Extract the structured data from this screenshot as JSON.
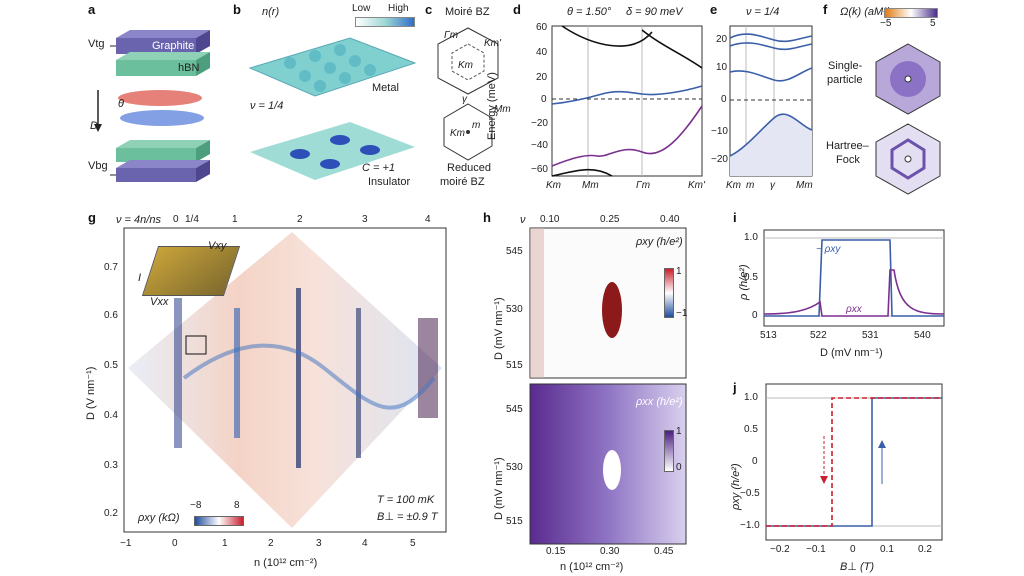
{
  "panels": {
    "a": {
      "letter": "a",
      "vtg": "Vtg",
      "graphite": "Graphite",
      "hbn": "hBN",
      "theta": "θ",
      "d": "D",
      "vbg": "Vbg"
    },
    "b": {
      "letter": "b",
      "nr": "n(r)",
      "low": "Low",
      "high": "High",
      "metal": "Metal",
      "nu": "ν = 1/4",
      "c1": "C = +1",
      "insulator": "Insulator"
    },
    "c": {
      "letter": "c",
      "moire_bz": "Moiré BZ",
      "gamma_m": "Γm",
      "km1": "Km'",
      "km2": "Km",
      "gamma": "γ",
      "mm": "Mm",
      "km3": "Km",
      "m": "m",
      "reduced1": "Reduced",
      "reduced2": "moiré BZ"
    },
    "d": {
      "letter": "d",
      "theta": "θ = 1.50°",
      "delta": "δ = 90 meV",
      "ylabel": "Energy (meV)",
      "yticks": [
        "60",
        "40",
        "20",
        "0",
        "−20",
        "−40",
        "−60"
      ],
      "xticks": [
        "Km",
        "Mm",
        "Γm",
        "Km'"
      ]
    },
    "e": {
      "letter": "e",
      "nu": "ν = 1/4",
      "yticks": [
        "20",
        "10",
        "0",
        "−10",
        "−20"
      ],
      "xticks": [
        "Km",
        "m",
        "γ",
        "Mm"
      ]
    },
    "f": {
      "letter": "f",
      "title": "Ω(k) (aM²)",
      "cmin": "−5",
      "cmax": "5",
      "single1": "Single-",
      "single2": "particle",
      "hartree1": "Hartree–",
      "hartree2": "Fock"
    },
    "g": {
      "letter": "g",
      "nu_label": "ν = 4n/ns",
      "top_ticks": [
        "0",
        "1/4",
        "1",
        "2",
        "3",
        "4"
      ],
      "yticks": [
        "0.7",
        "0.6",
        "0.5",
        "0.4",
        "0.3",
        "0.2"
      ],
      "ylabel": "D (V nm⁻¹)",
      "xticks": [
        "−1",
        "0",
        "1",
        "2",
        "3",
        "4",
        "5"
      ],
      "xlabel": "n (10¹² cm⁻²)",
      "vxy": "Vxy",
      "vxx": "Vxx",
      "i": "I",
      "cbar_label": "ρxy (kΩ)",
      "cmin": "−8",
      "cmax": "8",
      "temp": "T = 100 mK",
      "field": "B⊥ = ±0.9 T"
    },
    "h": {
      "letter": "h",
      "nu": "ν",
      "top_ticks": [
        "0.10",
        "0.25",
        "0.40"
      ],
      "yticks": [
        "545",
        "530",
        "515"
      ],
      "ylabel": "D (mV nm⁻¹)",
      "rxy_label": "ρxy (h/e²)",
      "rxy_max": "1",
      "rxy_min": "−1",
      "rxx_label": "ρxx (h/e²)",
      "rxx_max": "1",
      "rxx_min": "0",
      "xticks": [
        "0.15",
        "0.30",
        "0.45"
      ],
      "xlabel": "n (10¹² cm⁻²)"
    },
    "i": {
      "letter": "i",
      "ylabel": "ρ (h/e²)",
      "yticks": [
        "1.0",
        "0.5",
        "0"
      ],
      "xticks": [
        "513",
        "522",
        "531",
        "540"
      ],
      "xlabel": "D (mV nm⁻¹)",
      "rxy": "− ρxy",
      "rxx": "ρxx"
    },
    "j": {
      "letter": "j",
      "ylabel": "ρxy (h/e²)",
      "yticks": [
        "1.0",
        "0.5",
        "0",
        "−0.5",
        "−1.0"
      ],
      "xticks": [
        "−0.2",
        "−0.1",
        "0",
        "0.1",
        "0.2"
      ],
      "xlabel": "B⊥ (T)"
    }
  },
  "colors": {
    "purple": "#7b2f8f",
    "blue": "#3a5fa8",
    "red": "#c8202e",
    "black": "#111111",
    "teal": "#5fb7c4"
  }
}
